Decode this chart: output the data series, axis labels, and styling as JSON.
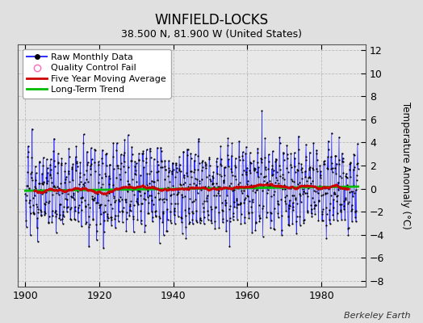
{
  "title": "WINFIELD-LOCKS",
  "subtitle": "38.500 N, 81.900 W (United States)",
  "ylabel": "Temperature Anomaly (°C)",
  "credit": "Berkeley Earth",
  "xlim": [
    1898,
    1992
  ],
  "ylim": [
    -8.5,
    12.5
  ],
  "yticks": [
    -8,
    -6,
    -4,
    -2,
    0,
    2,
    4,
    6,
    8,
    10,
    12
  ],
  "xticks": [
    1900,
    1920,
    1940,
    1960,
    1980
  ],
  "background_color": "#e0e0e0",
  "plot_bg_color": "#e8e8e8",
  "raw_color": "#3333ff",
  "dot_color": "#000000",
  "ma_color": "#cc0000",
  "trend_color": "#00bb00",
  "qc_color": "#ff69b4",
  "seed": 12345,
  "n_years": 90,
  "start_year": 1900,
  "trend_slope": 0.004,
  "trend_intercept": -0.18
}
